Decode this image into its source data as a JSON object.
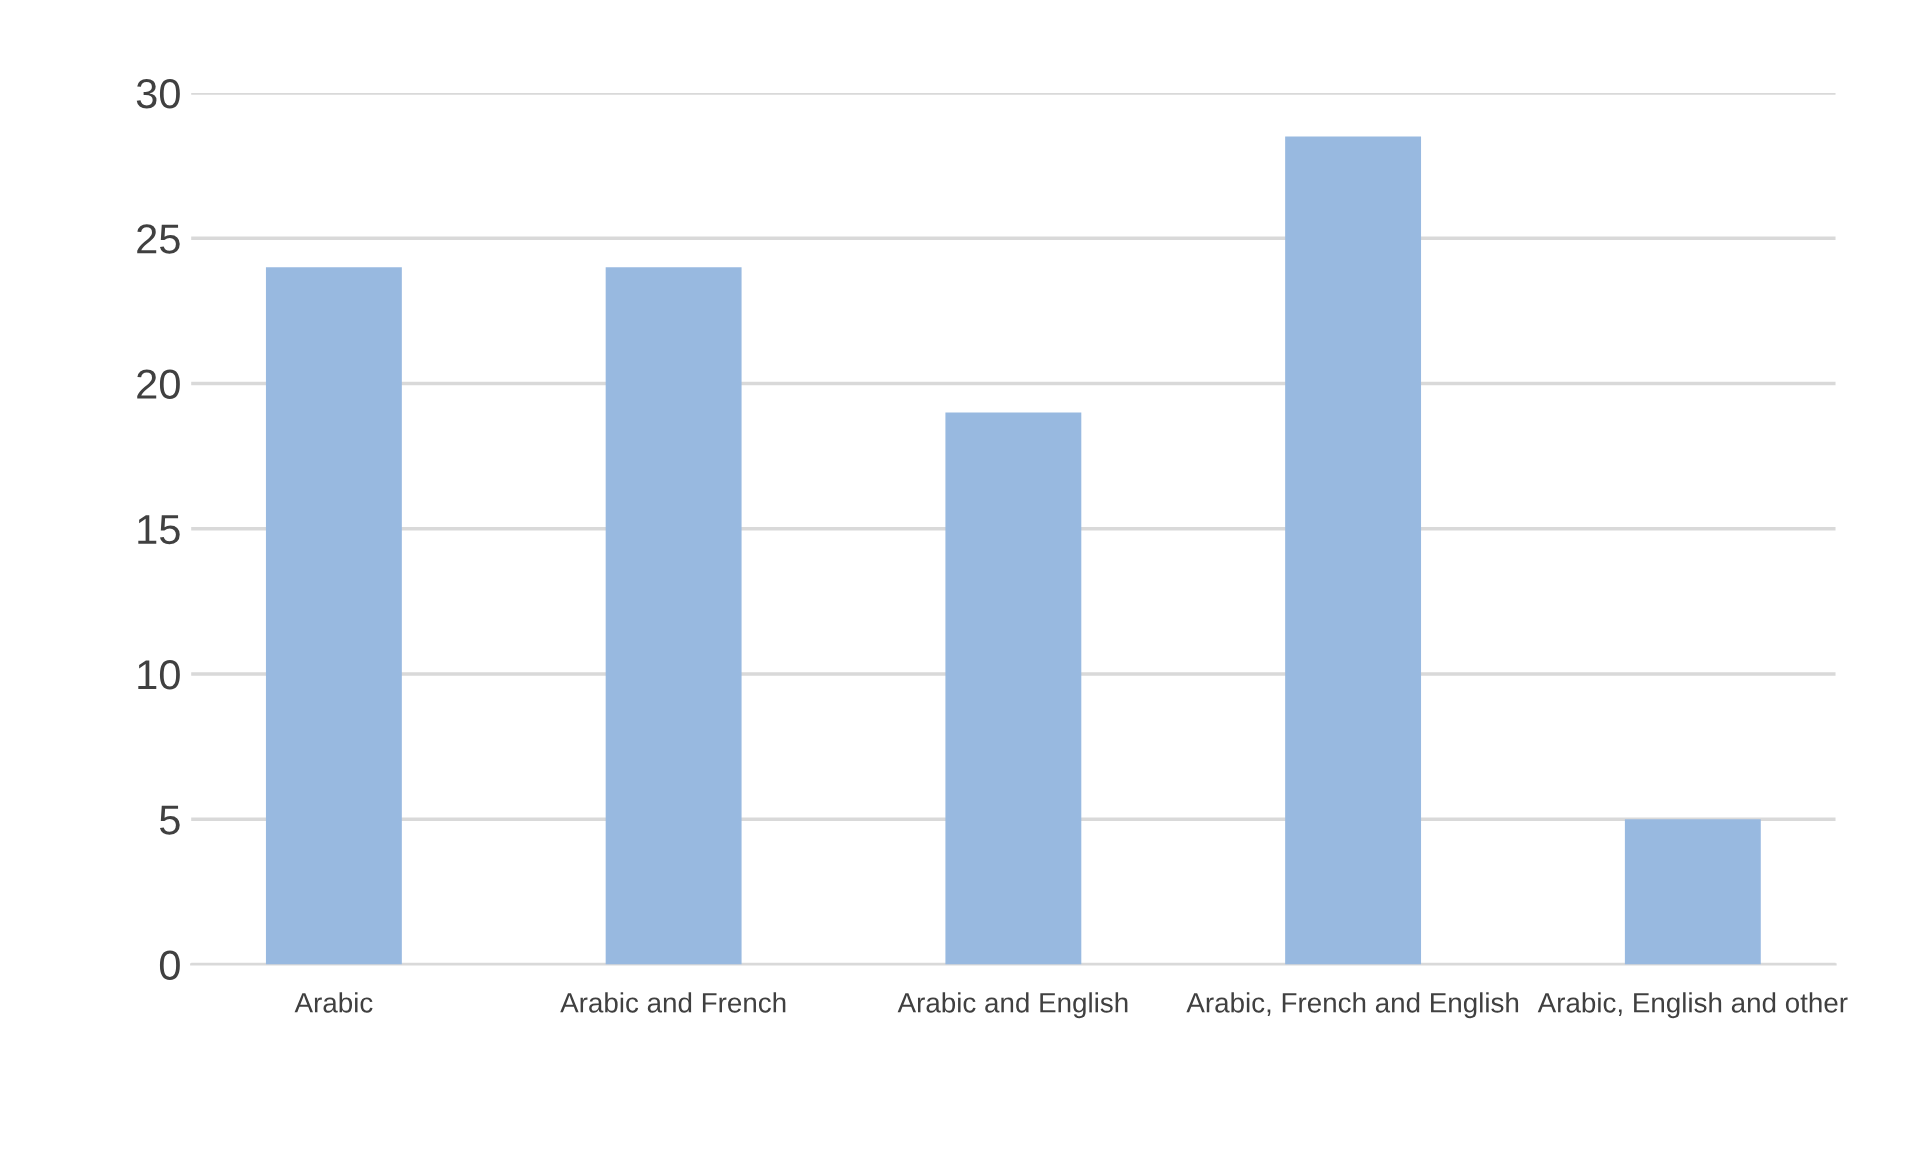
{
  "chart_data": {
    "type": "bar",
    "categories": [
      "Arabic",
      "Arabic and French",
      "Arabic and English",
      "Arabic, French and English",
      "Arabic, English and other"
    ],
    "values": [
      24,
      24,
      19,
      28.5,
      5
    ],
    "color": "#98b9e0",
    "ylim": [
      0,
      30
    ],
    "yticks": [
      0,
      5,
      10,
      15,
      20,
      25,
      30
    ],
    "grid": "y",
    "legend": false
  }
}
